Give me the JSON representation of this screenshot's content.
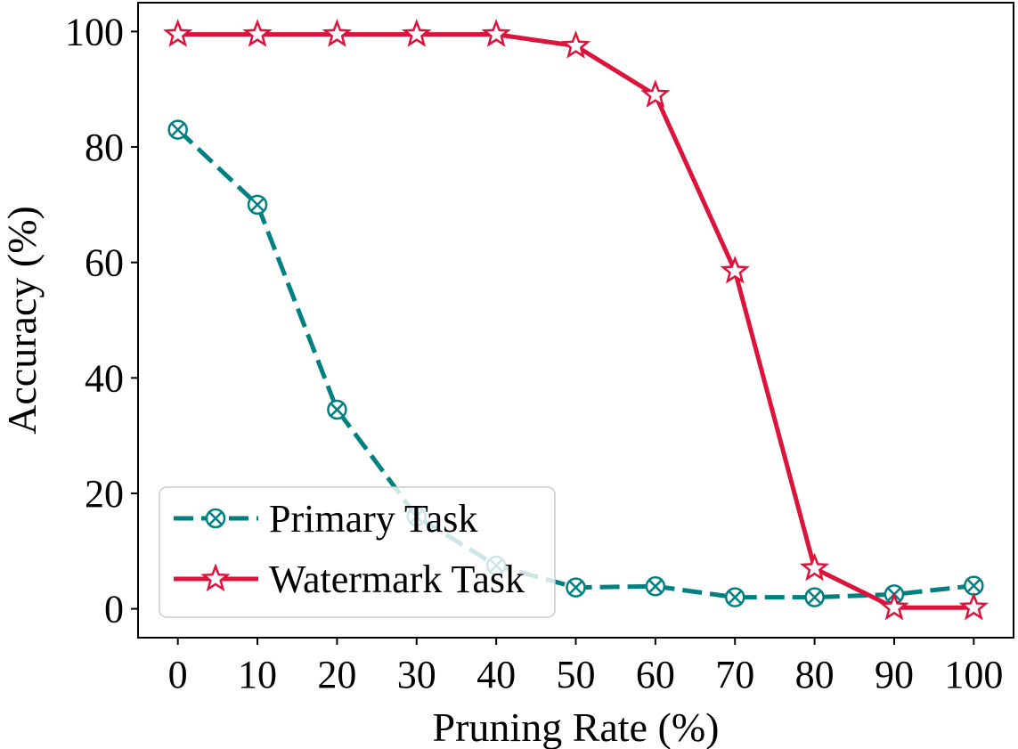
{
  "chart_data": {
    "type": "line",
    "title": "",
    "xlabel": "Pruning Rate (%)",
    "ylabel": "Accuracy (%)",
    "x": [
      0,
      10,
      20,
      30,
      40,
      50,
      60,
      70,
      80,
      90,
      100
    ],
    "xticks": [
      "0",
      "10",
      "20",
      "30",
      "40",
      "50",
      "60",
      "70",
      "80",
      "90",
      "100"
    ],
    "yticks": [
      "0",
      "20",
      "40",
      "60",
      "80",
      "100"
    ],
    "xlim": [
      -5,
      105
    ],
    "ylim": [
      -5,
      105
    ],
    "grid": false,
    "legend_position": "lower-left",
    "series": [
      {
        "name": "Primary Task",
        "color": "#008080",
        "line_style": "dashed",
        "marker": "circle-x",
        "values": [
          83,
          70,
          34.5,
          16,
          7.5,
          3.7,
          3.9,
          2,
          2,
          2.5,
          4
        ]
      },
      {
        "name": "Watermark Task",
        "color": "#DC143C",
        "line_style": "solid",
        "marker": "star",
        "values": [
          99.5,
          99.5,
          99.5,
          99.5,
          99.5,
          97.5,
          89,
          58.5,
          7,
          0.2,
          0.2
        ]
      }
    ]
  }
}
